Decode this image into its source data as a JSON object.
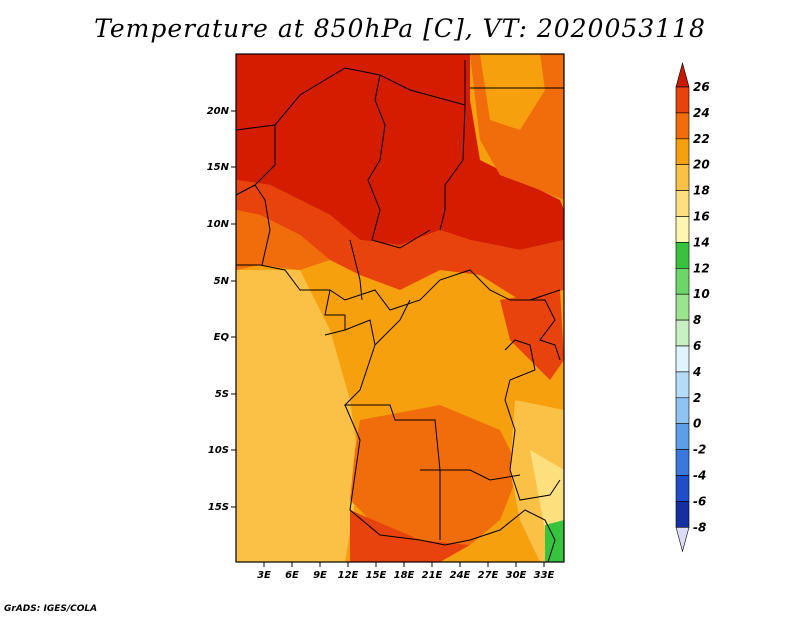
{
  "title": "Temperature at 850hPa [C], VT: 2020053118",
  "credit": "GrADS: IGES/COLA",
  "map": {
    "lat_labels": [
      "20N",
      "15N",
      "10N",
      "5N",
      "EQ",
      "5S",
      "10S",
      "15S"
    ],
    "lon_labels": [
      "3E",
      "6E",
      "9E",
      "12E",
      "15E",
      "18E",
      "21E",
      "24E",
      "27E",
      "30E",
      "33E"
    ]
  },
  "colorbar": {
    "levels": [
      "26",
      "24",
      "22",
      "20",
      "18",
      "16",
      "14",
      "12",
      "10",
      "8",
      "6",
      "4",
      "2",
      "0",
      "-2",
      "-4",
      "-6",
      "-8"
    ],
    "colors": [
      "#d41c00",
      "#e8430c",
      "#f16c0a",
      "#f7a00e",
      "#fbc046",
      "#fde07e",
      "#fdf6b0",
      "#38c33f",
      "#6dd66a",
      "#9be48f",
      "#c8f0c2",
      "#e0f4ff",
      "#b4dbf8",
      "#8ec3f2",
      "#5c9ee8",
      "#3a78dc",
      "#1f4fc8",
      "#1430a0",
      "#0a1470"
    ],
    "end_colors": {
      "top": "#c81a00",
      "bottom": "#dadcf8"
    }
  }
}
